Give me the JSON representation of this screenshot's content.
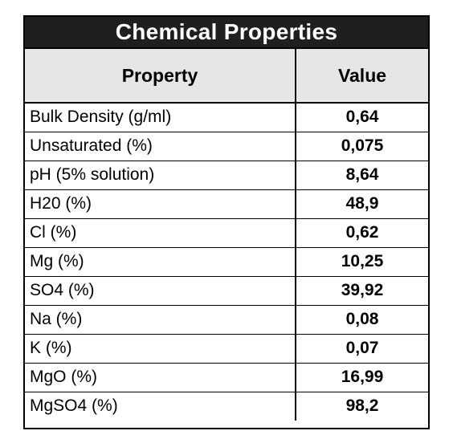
{
  "table": {
    "title": "Chemical Properties",
    "headers": {
      "property": "Property",
      "value": "Value"
    },
    "rows": [
      {
        "property": "Bulk Density (g/ml)",
        "value": "0,64"
      },
      {
        "property": "Unsaturated (%)",
        "value": "0,075"
      },
      {
        "property": "pH (5% solution)",
        "value": "8,64"
      },
      {
        "property": "H20 (%)",
        "value": "48,9"
      },
      {
        "property": "Cl (%)",
        "value": "0,62"
      },
      {
        "property": "Mg (%)",
        "value": "10,25"
      },
      {
        "property": "SO4 (%)",
        "value": "39,92"
      },
      {
        "property": "Na (%)",
        "value": "0,08"
      },
      {
        "property": "K (%)",
        "value": "0,07"
      },
      {
        "property": "MgO (%)",
        "value": "16,99"
      },
      {
        "property": "MgSO4 (%)",
        "value": "98,2"
      }
    ]
  },
  "colors": {
    "title_bg": "#1f1f1f",
    "title_text": "#ffffff",
    "header_bg": "#e6e6e6",
    "border": "#000000"
  }
}
